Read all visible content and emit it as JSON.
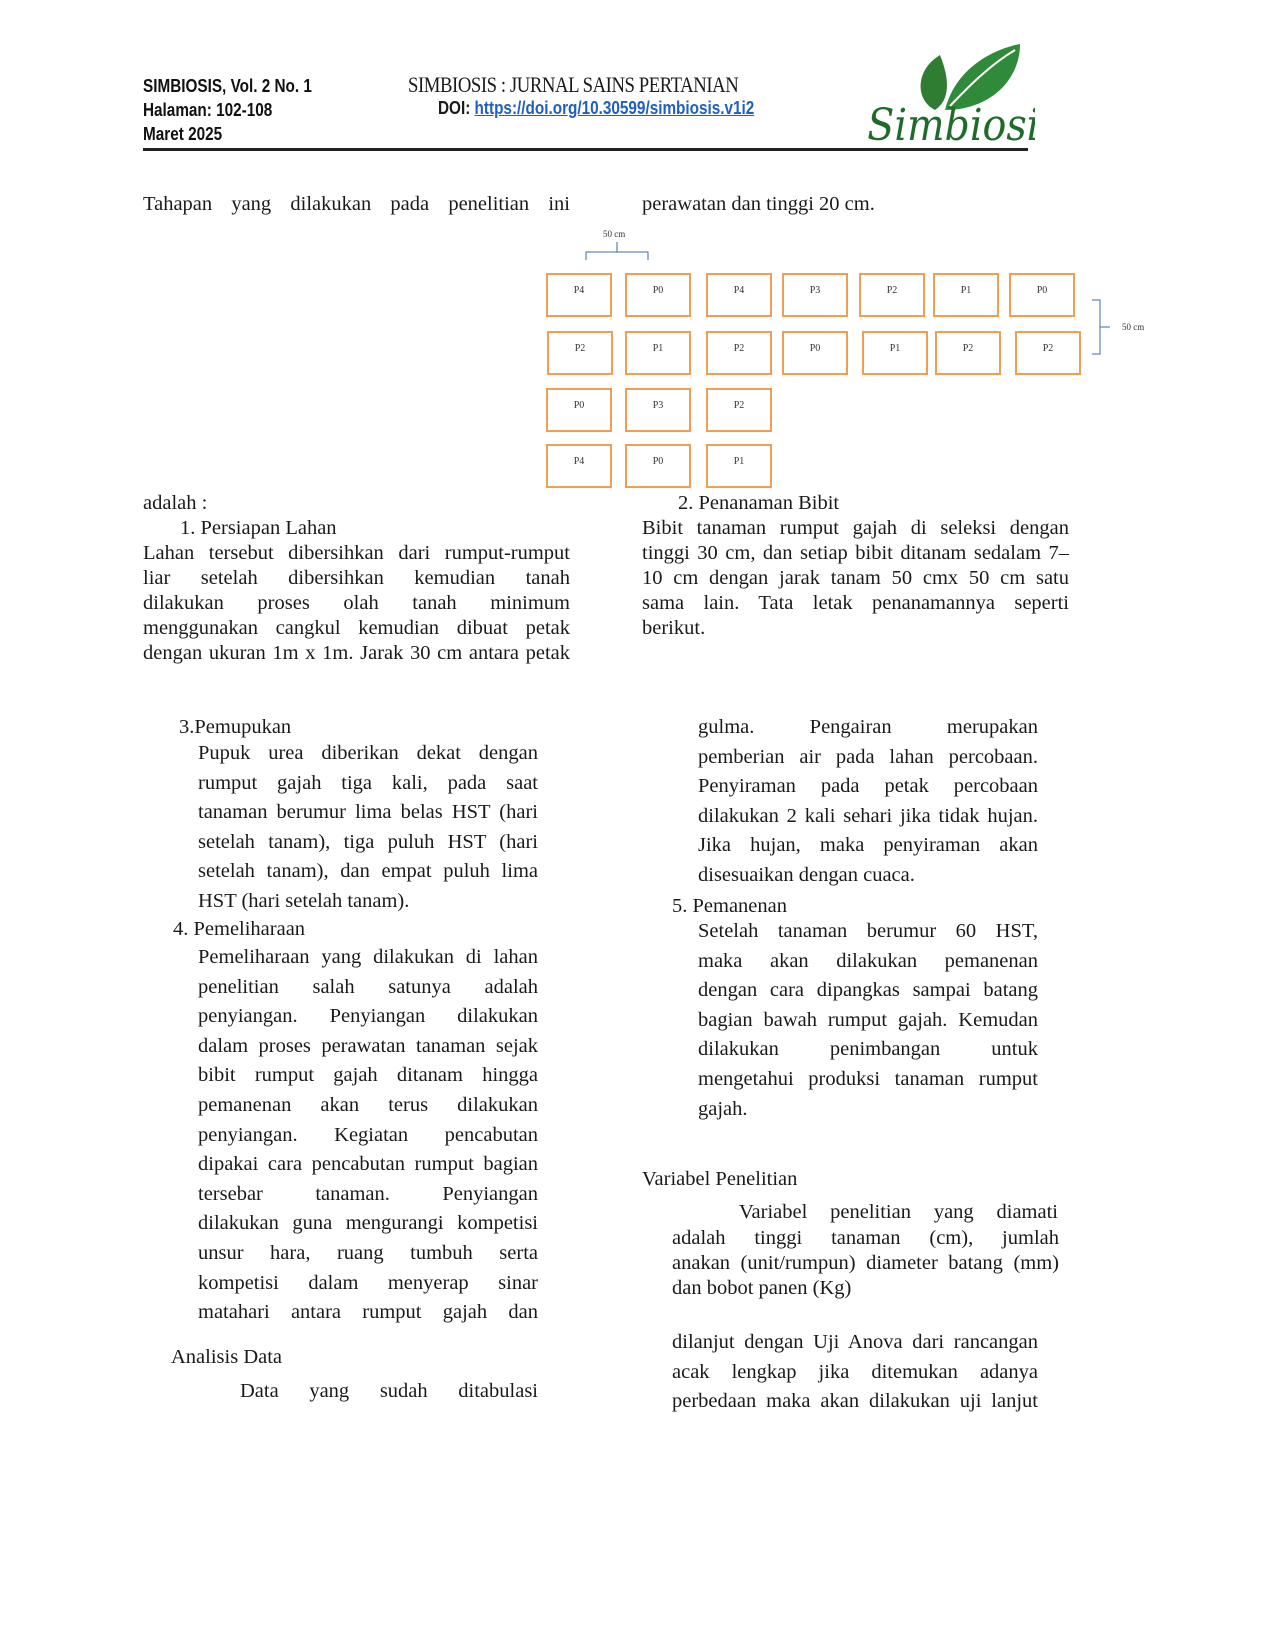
{
  "header": {
    "journal_short": "SIMBIOSIS, Vol. 2 No. 1",
    "pages": "Halaman: 102-108",
    "date": "Maret 2025",
    "journal_title": "SIMBIOSIS : JURNAL SAINS PERTANIAN",
    "doi_label": "DOI: ",
    "doi_link": "https://doi.org/10.30599/simbiosis.v1i2",
    "logo_text": "Simbiosis",
    "logo_color": "#2e7d32"
  },
  "diagram": {
    "spacing_top": "50 cm",
    "spacing_right": "50 cm",
    "rows": [
      [
        "P4",
        "P0",
        "P4",
        "P3",
        "P2",
        "P1",
        "P0"
      ],
      [
        "P2",
        "P1",
        "P2",
        "P0",
        "P1",
        "P2",
        "P2"
      ],
      [
        "P0",
        "P3",
        "P2"
      ],
      [
        "P4",
        "P0",
        "P1"
      ]
    ],
    "box_color": "#ef9f55"
  },
  "text": {
    "lt1": [
      "Tahapan yang dilakukan pada penelitian ini"
    ],
    "rt1": [
      "perawatan dan tinggi 20 cm."
    ],
    "lt2": [
      "adalah :"
    ],
    "h1": [
      "1.   Persiapan Lahan"
    ],
    "p1": [
      "Lahan tersebut dibersihkan dari rumput-rumput",
      "liar setelah dibersihkan kemudian tanah",
      "dilakukan proses olah tanah minimum",
      "menggunakan cangkul kemudian dibuat petak",
      "dengan ukuran 1m x 1m. Jarak 30 cm antara petak"
    ],
    "h2": [
      "2.   Penanaman Bibit"
    ],
    "p2": [
      "Bibit tanaman rumput gajah di seleksi dengan",
      "tinggi 30 cm, dan setiap bibit ditanam sedalam 7–",
      "10 cm dengan jarak tanam 50 cmx 50 cm satu",
      "sama lain. Tata letak penanamannya seperti",
      "berikut."
    ],
    "h3": [
      "3.Pemupukan"
    ],
    "p3": [
      "Pupuk urea diberikan dekat dengan",
      "rumput gajah tiga kali, pada saat",
      "tanaman berumur lima belas HST (hari",
      "setelah tanam), tiga puluh HST (hari",
      "setelah tanam), dan empat puluh lima",
      "HST (hari setelah tanam)."
    ],
    "h4": [
      "4. Pemeliharaan"
    ],
    "p4": [
      "Pemeliharaan yang dilakukan di lahan",
      "penelitian salah satunya adalah",
      "penyiangan. Penyiangan dilakukan",
      "dalam proses perawatan tanaman sejak",
      "bibit rumput gajah ditanam hingga",
      "pemanenan akan terus dilakukan",
      "penyiangan. Kegiatan pencabutan",
      "dipakai cara pencabutan rumput bagian",
      "tersebar tanaman. Penyiangan",
      "dilakukan guna mengurangi kompetisi",
      "unsur hara, ruang tumbuh serta",
      "kompetisi dalam menyerap sinar",
      "matahari antara rumput gajah dan"
    ],
    "p4b": [
      "gulma. Pengairan merupakan",
      "pemberian air pada lahan percobaan.",
      "Penyiraman pada petak percobaan",
      "dilakukan 2 kali sehari jika tidak hujan.",
      "Jika hujan, maka penyiraman akan",
      "disesuaikan dengan cuaca."
    ],
    "h5": [
      "5. Pemanenan"
    ],
    "p5": [
      "Setelah tanaman berumur 60 HST,",
      "maka akan dilakukan pemanenan",
      "dengan cara dipangkas sampai batang",
      "bagian bawah rumput gajah. Kemudan",
      "dilakukan penimbangan untuk",
      "mengetahui produksi tanaman rumput",
      "gajah."
    ],
    "hv": [
      "Variabel Penelitian"
    ],
    "pv1": [
      "Variabel penelitian yang diamati"
    ],
    "pv2": [
      "adalah tinggi tanaman (cm), jumlah",
      "anakan (unit/rumpun) diameter batang (mm)",
      "dan bobot panen (Kg)"
    ],
    "ha": [
      "Analisis Data"
    ],
    "pa": [
      "Data yang sudah ditabulasi"
    ],
    "pa2": [
      "dilanjut dengan Uji Anova dari rancangan",
      "acak lengkap jika ditemukan adanya",
      "perbedaan maka akan dilakukan uji lanjut"
    ]
  }
}
